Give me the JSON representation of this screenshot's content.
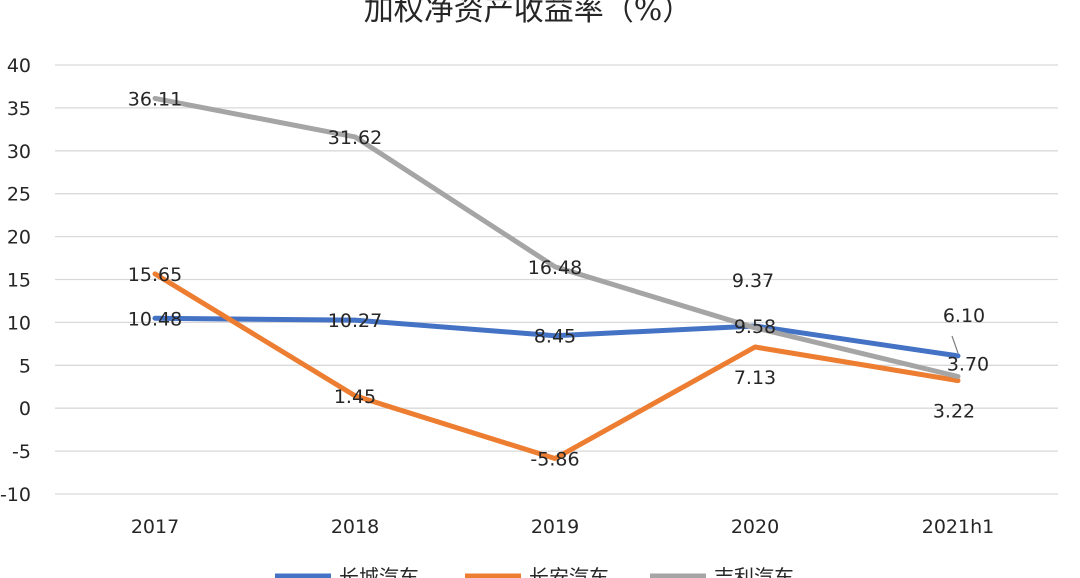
{
  "chart_data": {
    "type": "line",
    "title": "加权净资产收益率（%）",
    "categories": [
      "2017",
      "2018",
      "2019",
      "2020",
      "2021h1"
    ],
    "yticks": [
      "40",
      "35",
      "30",
      "25",
      "20",
      "15",
      "10",
      "5",
      "0",
      "-5",
      "-10"
    ],
    "ylim": [
      -10,
      40
    ],
    "grid": true,
    "legend_position": "bottom",
    "series": [
      {
        "name": "长城汽车",
        "color": "#4472c4",
        "values": [
          10.48,
          10.27,
          8.45,
          9.58,
          6.1
        ],
        "labels": [
          "10.48",
          "10.27",
          "8.45",
          "9.58",
          "6.10"
        ]
      },
      {
        "name": "长安汽车",
        "color": "#ed7d31",
        "values": [
          15.65,
          1.45,
          -5.86,
          7.13,
          3.22
        ],
        "labels": [
          "15.65",
          "1.45",
          "-5.86",
          "7.13",
          "3.22"
        ]
      },
      {
        "name": "吉利汽车",
        "color": "#a5a5a5",
        "values": [
          36.11,
          31.62,
          16.48,
          9.37,
          3.7
        ],
        "labels": [
          "36.11",
          "31.62",
          "16.48",
          "9.37",
          "3.70"
        ]
      }
    ]
  }
}
